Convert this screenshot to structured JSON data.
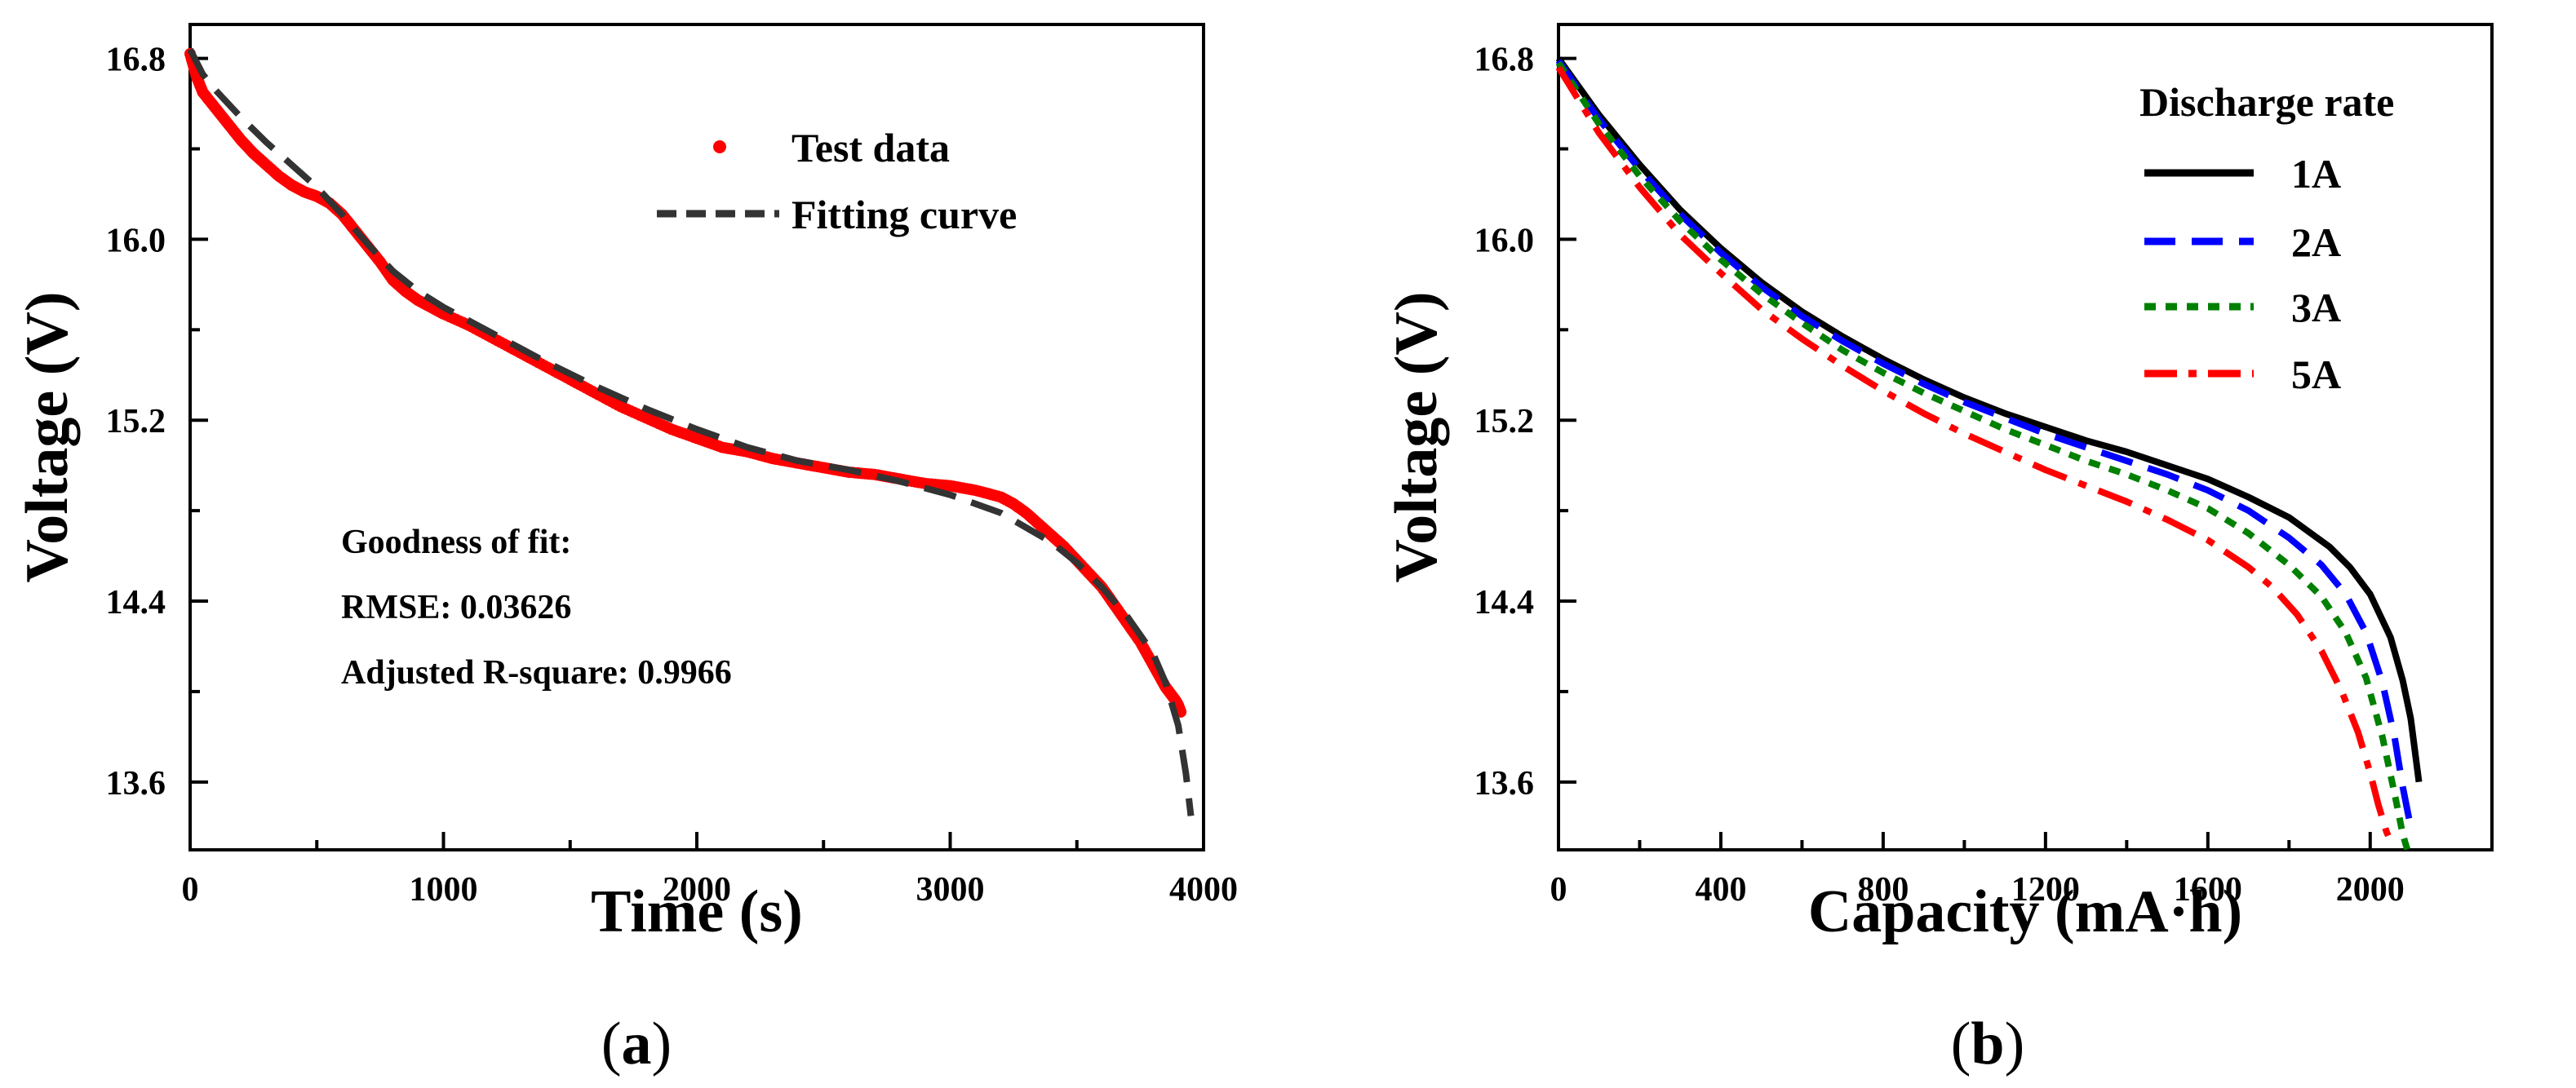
{
  "chart_data": [
    {
      "type": "scatter",
      "panel_label": "(a)",
      "panel_label_parts": [
        "(",
        "a",
        ")"
      ],
      "xlabel": "Time (s)",
      "ylabel": "Voltage (V)",
      "xlim": [
        0,
        4000
      ],
      "ylim": [
        13.3,
        16.95
      ],
      "xticks": [
        0,
        1000,
        2000,
        3000,
        4000
      ],
      "xtick_labels": [
        "0",
        "1000",
        "2000",
        "3000",
        "4000"
      ],
      "yticks": [
        13.6,
        14.4,
        15.2,
        16.0,
        16.8
      ],
      "ytick_labels": [
        "13.6",
        "14.4",
        "15.2",
        "16.0",
        "16.8"
      ],
      "legend": [
        {
          "label": "Test data",
          "style": "dot",
          "color": "#ff0000"
        },
        {
          "label": "Fitting curve",
          "style": "dash",
          "color": "#333333"
        }
      ],
      "annotations": [
        "Goodness of fit:",
        "RMSE: 0.03626",
        "Adjusted R-square: 0.9966"
      ],
      "series": [
        {
          "name": "Test data",
          "kind": "points",
          "color": "#ff0000",
          "x": [
            0,
            25,
            50,
            100,
            150,
            200,
            250,
            300,
            350,
            400,
            450,
            500,
            550,
            600,
            650,
            700,
            750,
            800,
            850,
            900,
            950,
            1000,
            1100,
            1200,
            1300,
            1400,
            1500,
            1600,
            1700,
            1800,
            1900,
            2000,
            2100,
            2200,
            2300,
            2400,
            2500,
            2600,
            2700,
            2800,
            2900,
            3000,
            3100,
            3200,
            3250,
            3300,
            3350,
            3400,
            3450,
            3500,
            3550,
            3600,
            3650,
            3700,
            3750,
            3800,
            3830,
            3850,
            3870,
            3890,
            3900,
            3910
          ],
          "y": [
            16.82,
            16.72,
            16.65,
            16.58,
            16.51,
            16.44,
            16.38,
            16.33,
            16.28,
            16.24,
            16.21,
            16.19,
            16.16,
            16.11,
            16.04,
            15.97,
            15.9,
            15.82,
            15.77,
            15.73,
            15.7,
            15.67,
            15.62,
            15.56,
            15.5,
            15.44,
            15.38,
            15.32,
            15.26,
            15.21,
            15.16,
            15.12,
            15.08,
            15.06,
            15.03,
            15.01,
            14.99,
            14.97,
            14.96,
            14.94,
            14.92,
            14.91,
            14.89,
            14.86,
            14.83,
            14.79,
            14.74,
            14.69,
            14.64,
            14.58,
            14.52,
            14.46,
            14.38,
            14.3,
            14.22,
            14.12,
            14.06,
            14.02,
            13.99,
            13.96,
            13.94,
            13.91
          ]
        },
        {
          "name": "Fitting curve",
          "kind": "line",
          "color": "#333333",
          "dash": "dash",
          "x": [
            0,
            50,
            100,
            200,
            300,
            400,
            500,
            600,
            700,
            800,
            900,
            1000,
            1200,
            1400,
            1600,
            1800,
            2000,
            2200,
            2400,
            2600,
            2800,
            3000,
            3200,
            3400,
            3500,
            3600,
            3700,
            3800,
            3850,
            3900,
            3930,
            3950
          ],
          "y": [
            16.84,
            16.73,
            16.66,
            16.54,
            16.43,
            16.33,
            16.23,
            16.11,
            15.98,
            15.86,
            15.77,
            15.7,
            15.58,
            15.46,
            15.35,
            15.25,
            15.16,
            15.08,
            15.02,
            14.98,
            14.93,
            14.87,
            14.79,
            14.66,
            14.57,
            14.46,
            14.33,
            14.17,
            14.04,
            13.85,
            13.64,
            13.45
          ]
        }
      ]
    },
    {
      "type": "line",
      "panel_label": "(b)",
      "panel_label_parts": [
        "(",
        "b",
        ")"
      ],
      "xlabel": "Capacity (mA·h)",
      "ylabel": "Voltage (V)",
      "xlim": [
        0,
        2300
      ],
      "ylim": [
        13.3,
        16.95
      ],
      "xticks": [
        0,
        400,
        800,
        1200,
        1600,
        2000
      ],
      "xtick_labels": [
        "0",
        "400",
        "800",
        "1200",
        "1600",
        "2000"
      ],
      "yticks": [
        13.6,
        14.4,
        15.2,
        16.0,
        16.8
      ],
      "ytick_labels": [
        "13.6",
        "14.4",
        "15.2",
        "16.0",
        "16.8"
      ],
      "legend_title": "Discharge rate",
      "legend": [
        {
          "label": "1A",
          "style": "solid",
          "color": "#000000"
        },
        {
          "label": "2A",
          "style": "dash",
          "color": "#0000ff"
        },
        {
          "label": "3A",
          "style": "dot",
          "color": "#008000"
        },
        {
          "label": "5A",
          "style": "dashdot",
          "color": "#ff0000"
        }
      ],
      "series": [
        {
          "name": "1A",
          "color": "#000000",
          "dash": "solid",
          "x": [
            0,
            100,
            200,
            300,
            400,
            500,
            600,
            700,
            800,
            900,
            1000,
            1100,
            1200,
            1300,
            1400,
            1500,
            1600,
            1700,
            1800,
            1900,
            1950,
            2000,
            2050,
            2080,
            2100,
            2120
          ],
          "y": [
            16.8,
            16.55,
            16.33,
            16.13,
            15.96,
            15.81,
            15.68,
            15.57,
            15.47,
            15.38,
            15.3,
            15.23,
            15.17,
            15.11,
            15.06,
            15.0,
            14.94,
            14.86,
            14.77,
            14.64,
            14.55,
            14.43,
            14.24,
            14.05,
            13.88,
            13.6
          ]
        },
        {
          "name": "2A",
          "color": "#0000ff",
          "dash": "dash",
          "x": [
            0,
            100,
            200,
            300,
            400,
            500,
            600,
            700,
            800,
            900,
            1000,
            1100,
            1200,
            1300,
            1400,
            1500,
            1600,
            1700,
            1800,
            1880,
            1940,
            1990,
            2030,
            2060,
            2080,
            2100
          ],
          "y": [
            16.79,
            16.53,
            16.31,
            16.11,
            15.94,
            15.79,
            15.66,
            15.55,
            15.45,
            15.36,
            15.28,
            15.21,
            15.14,
            15.08,
            15.02,
            14.96,
            14.89,
            14.8,
            14.68,
            14.56,
            14.43,
            14.26,
            14.04,
            13.8,
            13.58,
            13.4
          ]
        },
        {
          "name": "3A",
          "color": "#008000",
          "dash": "dot",
          "x": [
            0,
            100,
            200,
            300,
            400,
            500,
            600,
            700,
            800,
            900,
            1000,
            1100,
            1200,
            1300,
            1400,
            1500,
            1600,
            1700,
            1800,
            1880,
            1940,
            1990,
            2030,
            2060,
            2080,
            2095
          ],
          "y": [
            16.78,
            16.51,
            16.28,
            16.08,
            15.91,
            15.76,
            15.63,
            15.51,
            15.41,
            15.32,
            15.24,
            15.16,
            15.09,
            15.02,
            14.96,
            14.89,
            14.81,
            14.7,
            14.56,
            14.42,
            14.26,
            14.06,
            13.8,
            13.55,
            13.37,
            13.28
          ]
        },
        {
          "name": "5A",
          "color": "#ff0000",
          "dash": "dashdot",
          "x": [
            0,
            100,
            200,
            300,
            400,
            500,
            600,
            700,
            800,
            900,
            1000,
            1100,
            1200,
            1300,
            1400,
            1500,
            1600,
            1700,
            1760,
            1820,
            1880,
            1930,
            1970,
            2000,
            2020,
            2040,
            2055
          ],
          "y": [
            16.76,
            16.47,
            16.23,
            16.02,
            15.85,
            15.69,
            15.56,
            15.44,
            15.33,
            15.23,
            15.14,
            15.06,
            14.98,
            14.91,
            14.84,
            14.76,
            14.67,
            14.55,
            14.46,
            14.34,
            14.18,
            14.0,
            13.82,
            13.64,
            13.5,
            13.38,
            13.32
          ]
        }
      ]
    }
  ]
}
